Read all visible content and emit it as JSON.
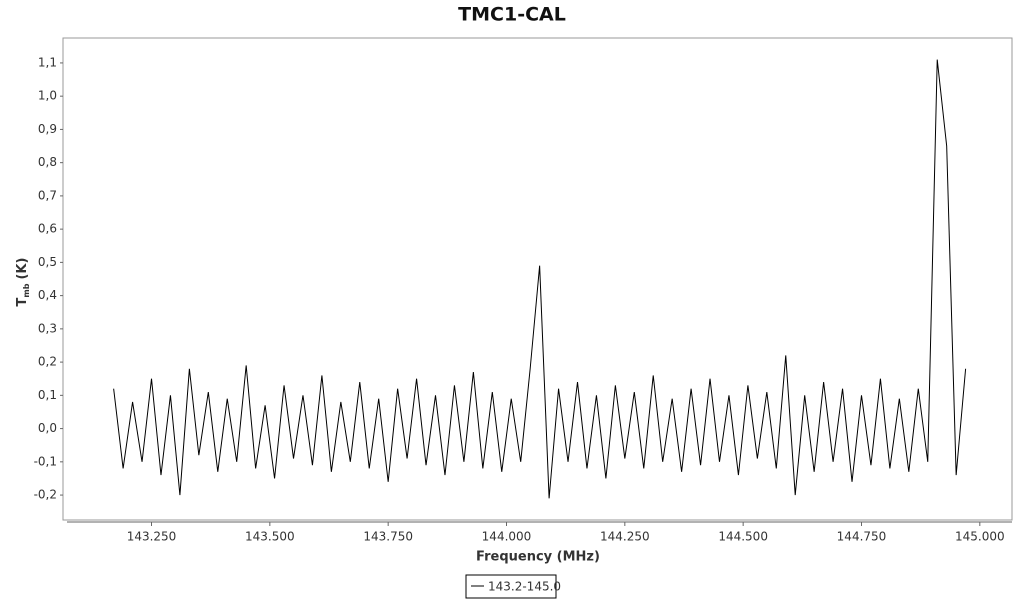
{
  "chart_data": {
    "type": "line",
    "title": "TMC1-CAL",
    "x_label": "Frequency (MHz)",
    "y_label": "T",
    "y_label_sub": "mb",
    "y_label_unit": "(K)",
    "x": [
      143.17,
      143.19,
      143.21,
      143.23,
      143.25,
      143.27,
      143.29,
      143.31,
      143.33,
      143.35,
      143.37,
      143.39,
      143.41,
      143.43,
      143.45,
      143.47,
      143.49,
      143.51,
      143.53,
      143.55,
      143.57,
      143.59,
      143.61,
      143.63,
      143.65,
      143.67,
      143.69,
      143.71,
      143.73,
      143.75,
      143.77,
      143.79,
      143.81,
      143.83,
      143.85,
      143.87,
      143.89,
      143.91,
      143.93,
      143.95,
      143.97,
      143.99,
      144.01,
      144.03,
      144.05,
      144.07,
      144.09,
      144.11,
      144.13,
      144.15,
      144.17,
      144.19,
      144.21,
      144.23,
      144.25,
      144.27,
      144.29,
      144.31,
      144.33,
      144.35,
      144.37,
      144.39,
      144.41,
      144.43,
      144.45,
      144.47,
      144.49,
      144.51,
      144.53,
      144.55,
      144.57,
      144.59,
      144.61,
      144.63,
      144.65,
      144.67,
      144.69,
      144.71,
      144.73,
      144.75,
      144.77,
      144.79,
      144.81,
      144.83,
      144.85,
      144.87,
      144.89,
      144.91,
      144.93,
      144.95,
      144.97
    ],
    "series": [
      {
        "name": "143.2-145.0",
        "color": "#000000",
        "values": [
          0.12,
          -0.12,
          0.08,
          -0.1,
          0.15,
          -0.14,
          0.1,
          -0.2,
          0.18,
          -0.08,
          0.11,
          -0.13,
          0.09,
          -0.1,
          0.19,
          -0.12,
          0.07,
          -0.15,
          0.13,
          -0.09,
          0.1,
          -0.11,
          0.16,
          -0.13,
          0.08,
          -0.1,
          0.14,
          -0.12,
          0.09,
          -0.16,
          0.12,
          -0.09,
          0.15,
          -0.11,
          0.1,
          -0.14,
          0.13,
          -0.1,
          0.17,
          -0.12,
          0.11,
          -0.13,
          0.09,
          -0.1,
          0.18,
          0.49,
          -0.21,
          0.12,
          -0.1,
          0.14,
          -0.12,
          0.1,
          -0.15,
          0.13,
          -0.09,
          0.11,
          -0.12,
          0.16,
          -0.1,
          0.09,
          -0.13,
          0.12,
          -0.11,
          0.15,
          -0.1,
          0.1,
          -0.14,
          0.13,
          -0.09,
          0.11,
          -0.12,
          0.22,
          -0.2,
          0.1,
          -0.13,
          0.14,
          -0.1,
          0.12,
          -0.16,
          0.1,
          -0.11,
          0.15,
          -0.12,
          0.09,
          -0.13,
          0.12,
          -0.1,
          1.11,
          0.85,
          -0.14,
          0.18
        ]
      }
    ],
    "xlim": [
      143.063,
      145.068
    ],
    "ylim": [
      -0.275,
      1.175
    ],
    "xticks": [
      {
        "value": 143.25,
        "label": "143.250"
      },
      {
        "value": 143.5,
        "label": "143.500"
      },
      {
        "value": 143.75,
        "label": "143.750"
      },
      {
        "value": 144.0,
        "label": "144.000"
      },
      {
        "value": 144.25,
        "label": "144.250"
      },
      {
        "value": 144.5,
        "label": "144.500"
      },
      {
        "value": 144.75,
        "label": "144.750"
      },
      {
        "value": 145.0,
        "label": "145.000"
      }
    ],
    "yticks": [
      {
        "value": -0.2,
        "label": "-0,2"
      },
      {
        "value": -0.1,
        "label": "-0,1"
      },
      {
        "value": 0,
        "label": "0,0"
      },
      {
        "value": 0.1,
        "label": "0,1"
      },
      {
        "value": 0.2,
        "label": "0,2"
      },
      {
        "value": 0.3,
        "label": "0,3"
      },
      {
        "value": 0.4,
        "label": "0,4"
      },
      {
        "value": 0.5,
        "label": "0,5"
      },
      {
        "value": 0.6,
        "label": "0,6"
      },
      {
        "value": 0.7,
        "label": "0,7"
      },
      {
        "value": 0.8,
        "label": "0,8"
      },
      {
        "value": 0.9,
        "label": "0,9"
      },
      {
        "value": 1.0,
        "label": "1,0"
      },
      {
        "value": 1.1,
        "label": "1,1"
      }
    ],
    "grid": false
  }
}
